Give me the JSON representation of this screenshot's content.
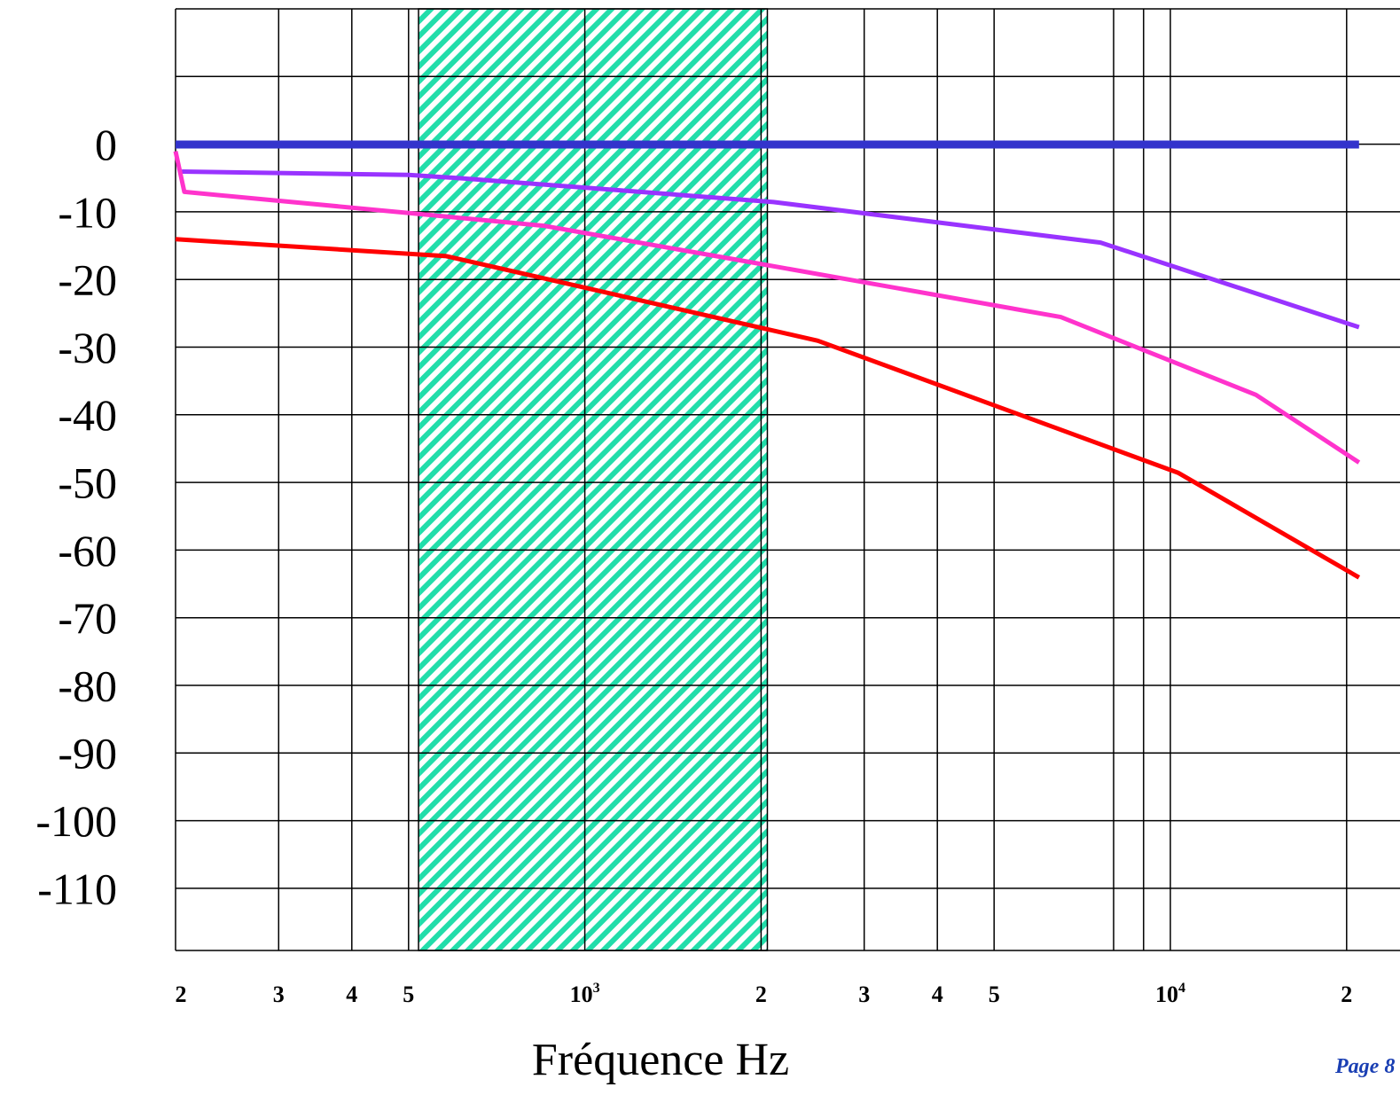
{
  "chart_data": {
    "type": "line",
    "x_scale": "log",
    "xlabel": "Fréquence Hz",
    "ylabel": "",
    "title": "",
    "grid": true,
    "y_ticks": [
      0,
      -10,
      -20,
      -30,
      -40,
      -50,
      -60,
      -70,
      -80,
      -90,
      -100,
      -110
    ],
    "y_tick_labels": [
      "0",
      "-10",
      "-20",
      "-30",
      "-40",
      "-50",
      "-60",
      "-70",
      "-80",
      "-90",
      "-100",
      "-110"
    ],
    "x_tick_labels": [
      {
        "value": 200,
        "base": "2",
        "sup": ""
      },
      {
        "value": 300,
        "base": "3",
        "sup": ""
      },
      {
        "value": 400,
        "base": "4",
        "sup": ""
      },
      {
        "value": 500,
        "base": "5",
        "sup": ""
      },
      {
        "value": 1000,
        "base": "10",
        "sup": "3"
      },
      {
        "value": 2000,
        "base": "2",
        "sup": ""
      },
      {
        "value": 3000,
        "base": "3",
        "sup": ""
      },
      {
        "value": 4000,
        "base": "4",
        "sup": ""
      },
      {
        "value": 5000,
        "base": "5",
        "sup": ""
      },
      {
        "value": 10000,
        "base": "10",
        "sup": "4"
      },
      {
        "value": 20000,
        "base": "2",
        "sup": ""
      }
    ],
    "x_gridlines": [
      200,
      300,
      400,
      500,
      1000,
      2000,
      3000,
      4000,
      5000,
      8000,
      9000,
      10000,
      20000
    ],
    "highlight_band": {
      "x_from": 520,
      "x_to": 2050,
      "color": "#22ddaa"
    },
    "series": [
      {
        "color": "#3333cc",
        "points": [
          [
            200,
            0
          ],
          [
            21000,
            0
          ]
        ]
      },
      {
        "color": "#9933ff",
        "points": [
          [
            205,
            -4
          ],
          [
            500,
            -4.5
          ],
          [
            620,
            -5
          ],
          [
            2100,
            -8.5
          ],
          [
            7600,
            -14.5
          ],
          [
            21000,
            -27
          ]
        ]
      },
      {
        "color": "#ff33cc",
        "points": [
          [
            200,
            -1
          ],
          [
            207,
            -7
          ],
          [
            850,
            -12
          ],
          [
            1950,
            -17.5
          ],
          [
            6500,
            -25.5
          ],
          [
            14000,
            -37
          ],
          [
            21000,
            -47
          ]
        ]
      },
      {
        "color": "#ff0000",
        "points": [
          [
            200,
            -14
          ],
          [
            580,
            -16.5
          ],
          [
            2500,
            -29
          ],
          [
            10300,
            -48.5
          ],
          [
            21000,
            -64
          ]
        ]
      }
    ]
  },
  "footer": {
    "page_label": "Page 8"
  }
}
